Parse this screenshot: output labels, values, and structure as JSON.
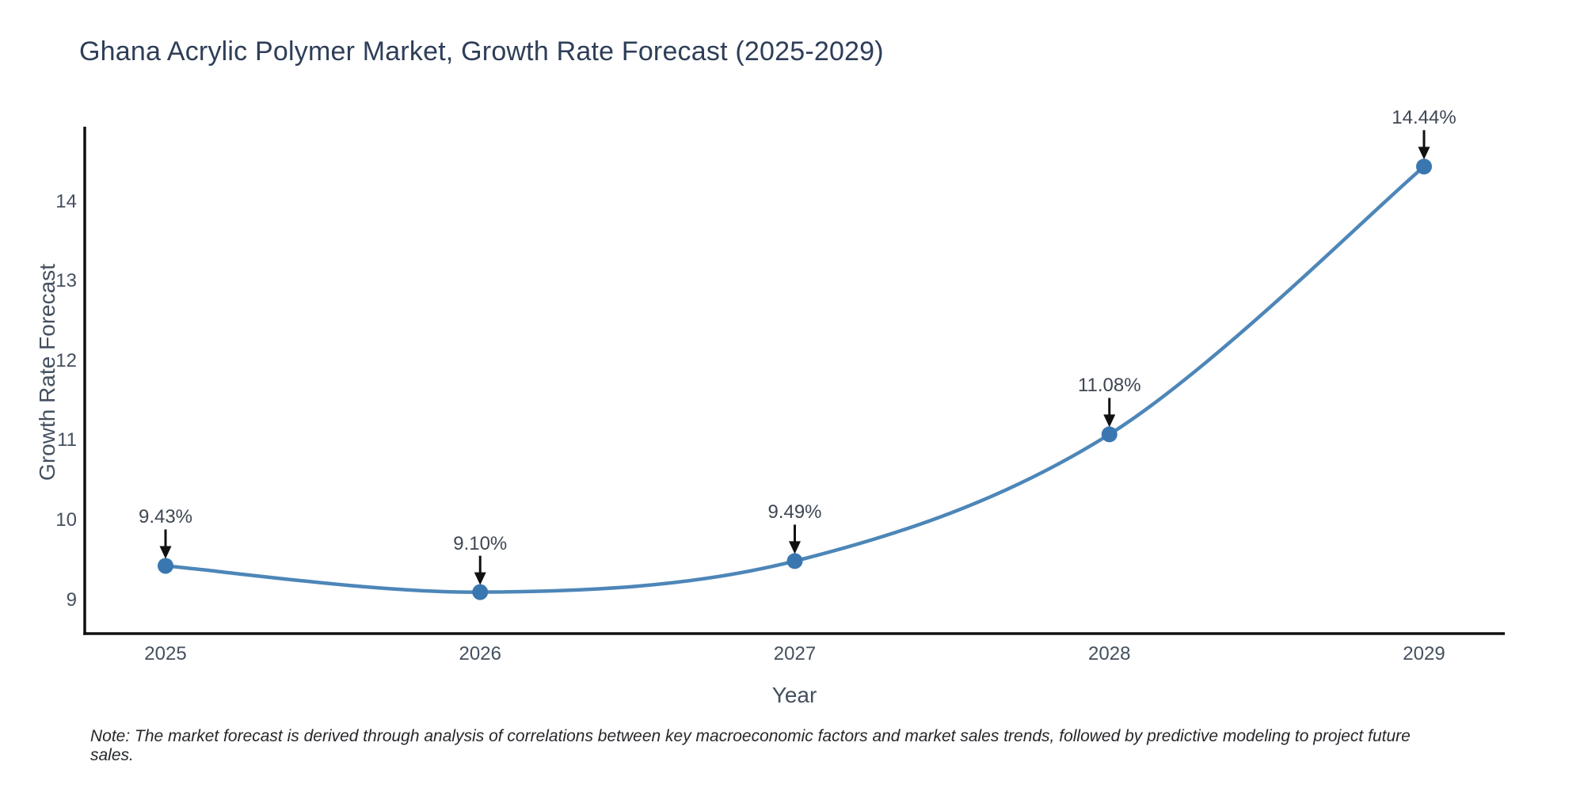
{
  "title": "Ghana Acrylic Polymer Market, Growth Rate Forecast (2025-2029)",
  "note": "Note: The market forecast is derived through analysis of correlations between key macroeconomic factors and market sales trends, followed by predictive modeling to project future sales.",
  "chart_data": {
    "type": "line",
    "title": "Ghana Acrylic Polymer Market, Growth Rate Forecast (2025-2029)",
    "xlabel": "Year",
    "ylabel": "Growth Rate Forecast",
    "categories": [
      "2025",
      "2026",
      "2027",
      "2028",
      "2029"
    ],
    "series": [
      {
        "name": "Growth Rate Forecast",
        "values": [
          9.43,
          9.1,
          9.49,
          11.08,
          14.44
        ]
      }
    ],
    "point_labels": [
      "9.43%",
      "9.10%",
      "9.49%",
      "11.08%",
      "14.44%"
    ],
    "yticks": [
      9,
      10,
      11,
      12,
      13,
      14
    ],
    "ylim": [
      8.58,
      14.94
    ],
    "grid": false,
    "legend": false,
    "line_shape": "spline",
    "colors": {
      "line": "#4d86b8",
      "marker": "#3a77b0",
      "axis": "#111111",
      "arrow": "#111111",
      "title_text": "#2e3e58",
      "tick_text": "#44505f"
    }
  }
}
